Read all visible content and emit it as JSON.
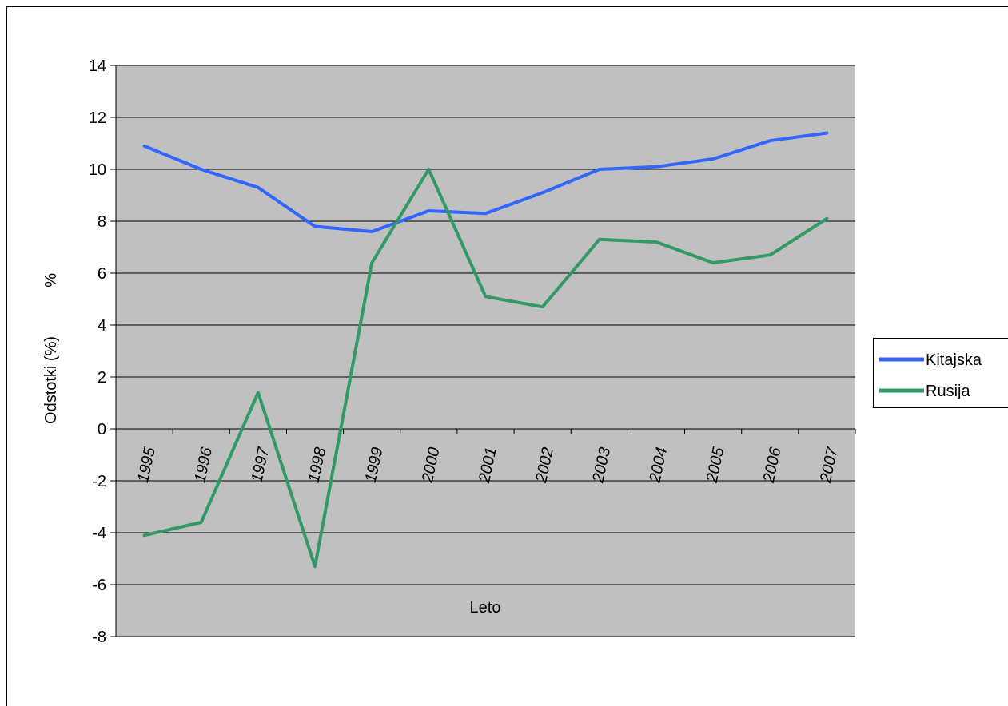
{
  "chart_data": {
    "type": "line",
    "title": "",
    "xlabel": "Leto",
    "ylabel": "Odstotki (%)",
    "ylabel_unit": "%",
    "categories": [
      "1995",
      "1996",
      "1997",
      "1998",
      "1999",
      "2000",
      "2001",
      "2002",
      "2003",
      "2004",
      "2005",
      "2006",
      "2007"
    ],
    "series": [
      {
        "name": "Kitajska",
        "color": "#3366ff",
        "values": [
          10.9,
          10.0,
          9.3,
          7.8,
          7.6,
          8.4,
          8.3,
          9.1,
          10.0,
          10.1,
          10.4,
          11.1,
          11.4
        ]
      },
      {
        "name": "Rusija",
        "color": "#339966",
        "values": [
          -4.1,
          -3.6,
          1.4,
          -5.3,
          6.4,
          10.0,
          5.1,
          4.7,
          7.3,
          7.2,
          6.4,
          6.7,
          8.1
        ]
      }
    ],
    "ylim": [
      -8,
      14
    ],
    "yticks": [
      "-8",
      "-6",
      "-4",
      "-2",
      "0",
      "2",
      "4",
      "6",
      "8",
      "10",
      "12",
      "14"
    ],
    "grid": true,
    "plot_background": "#c0c0c0",
    "legend_position": "right"
  }
}
